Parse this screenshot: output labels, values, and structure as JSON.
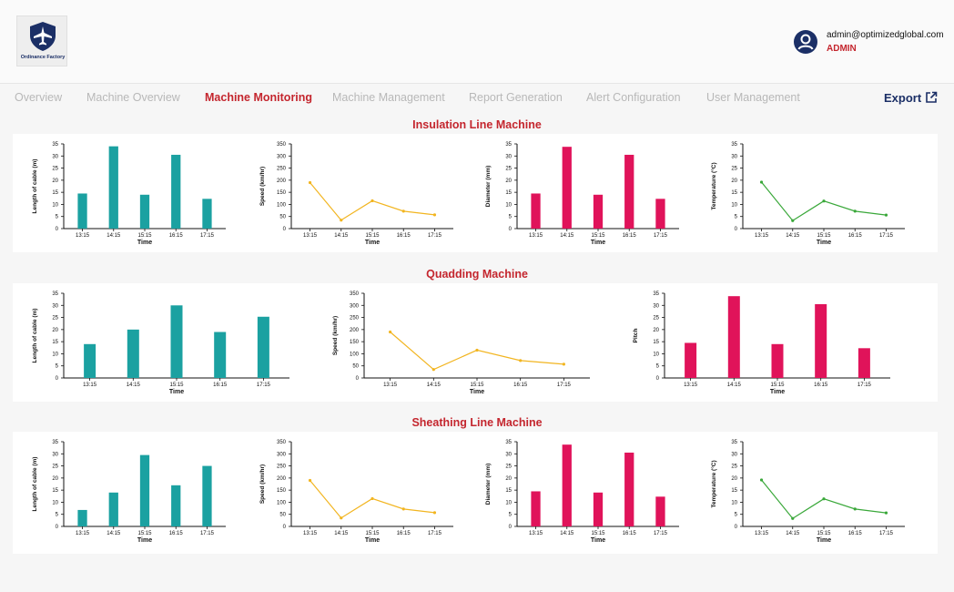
{
  "header": {
    "logo_text": "Ordinance Factory",
    "user_email": "admin@optimizedglobal.com",
    "user_role": "ADMIN"
  },
  "nav": {
    "tabs": [
      {
        "label": "Overview",
        "active": false
      },
      {
        "label": "Machine Overview",
        "active": false
      },
      {
        "label": "Machine Monitoring",
        "active": true
      },
      {
        "label": "Machine Management",
        "active": false
      },
      {
        "label": "Report Generation",
        "active": false
      },
      {
        "label": "Alert Configuration",
        "active": false
      },
      {
        "label": "User Management",
        "active": false
      }
    ],
    "export_label": "Export"
  },
  "colors": {
    "teal": "#1ba1a1",
    "amber": "#f2b520",
    "crimson": "#e0135a",
    "green": "#3aa83a",
    "accent": "#c4262e",
    "navy": "#1b2f66"
  },
  "sections": [
    {
      "title": "Insulation Line Machine"
    },
    {
      "title": "Quadding Machine"
    },
    {
      "title": "Sheathing Line Machine"
    }
  ],
  "chart_data": [
    {
      "id": "ins-length",
      "type": "bar",
      "color": "teal",
      "categories": [
        "13:15",
        "14:15",
        "15:15",
        "16:15",
        "17:15"
      ],
      "values": [
        14.5,
        34,
        14,
        30.5,
        12.3
      ],
      "ylabel": "Length of cable (m)",
      "xlabel": "Time",
      "ylim": [
        0,
        35
      ],
      "yticks": [
        0,
        5,
        10,
        15,
        20,
        25,
        30,
        35
      ]
    },
    {
      "id": "ins-speed",
      "type": "line",
      "color": "amber",
      "categories": [
        "13:15",
        "14:15",
        "15:15",
        "16:15",
        "17:15"
      ],
      "values": [
        190,
        35,
        115,
        72,
        57
      ],
      "ylabel": "Speed (km/hr)",
      "xlabel": "Time",
      "ylim": [
        0,
        350
      ],
      "yticks": [
        0,
        50,
        100,
        150,
        200,
        250,
        300,
        350
      ]
    },
    {
      "id": "ins-diameter",
      "type": "bar",
      "color": "crimson",
      "categories": [
        "13:15",
        "14:15",
        "15:15",
        "16:15",
        "17:15"
      ],
      "values": [
        14.5,
        33.8,
        14,
        30.5,
        12.3
      ],
      "ylabel": "Diameter (mm)",
      "xlabel": "Time",
      "ylim": [
        0,
        35
      ],
      "yticks": [
        0,
        5,
        10,
        15,
        20,
        25,
        30,
        35
      ]
    },
    {
      "id": "ins-temp",
      "type": "line",
      "color": "green",
      "categories": [
        "13:15",
        "14:15",
        "15:15",
        "16:15",
        "17:15"
      ],
      "values": [
        19.2,
        3.3,
        11.4,
        7.2,
        5.6
      ],
      "ylabel": "Temperature (°C)",
      "xlabel": "Time",
      "ylim": [
        0,
        35
      ],
      "yticks": [
        0,
        5,
        10,
        15,
        20,
        25,
        30,
        35
      ]
    },
    {
      "id": "quad-length",
      "type": "bar",
      "color": "teal",
      "categories": [
        "13:15",
        "14:15",
        "15:15",
        "16:15",
        "17:15"
      ],
      "values": [
        14,
        20,
        30,
        19,
        25.3
      ],
      "ylabel": "Length of cable (m)",
      "xlabel": "Time",
      "ylim": [
        0,
        35
      ],
      "yticks": [
        0,
        5,
        10,
        15,
        20,
        25,
        30,
        35
      ]
    },
    {
      "id": "quad-speed",
      "type": "line",
      "color": "amber",
      "categories": [
        "13:15",
        "14:15",
        "15:15",
        "16:15",
        "17:15"
      ],
      "values": [
        190,
        35,
        115,
        72,
        57
      ],
      "ylabel": "Speed (km/hr)",
      "xlabel": "Time",
      "ylim": [
        0,
        350
      ],
      "yticks": [
        0,
        50,
        100,
        150,
        200,
        250,
        300,
        350
      ]
    },
    {
      "id": "quad-pitch",
      "type": "bar",
      "color": "crimson",
      "categories": [
        "13:15",
        "14:15",
        "15:15",
        "16:15",
        "17:15"
      ],
      "values": [
        14.5,
        33.8,
        14,
        30.5,
        12.3
      ],
      "ylabel": "Pitch",
      "xlabel": "Time",
      "ylim": [
        0,
        35
      ],
      "yticks": [
        0,
        5,
        10,
        15,
        20,
        25,
        30,
        35
      ]
    },
    {
      "id": "sh-length",
      "type": "bar",
      "color": "teal",
      "categories": [
        "13:15",
        "14:15",
        "15:15",
        "16:15",
        "17:15"
      ],
      "values": [
        6.8,
        14,
        29.5,
        17,
        25
      ],
      "ylabel": "Length of cable (m)",
      "xlabel": "Time",
      "ylim": [
        0,
        35
      ],
      "yticks": [
        0,
        5,
        10,
        15,
        20,
        25,
        30,
        35
      ]
    },
    {
      "id": "sh-speed",
      "type": "line",
      "color": "amber",
      "categories": [
        "13:15",
        "14:15",
        "15:15",
        "16:15",
        "17:15"
      ],
      "values": [
        190,
        35,
        115,
        72,
        57
      ],
      "ylabel": "Speed (km/hr)",
      "xlabel": "Time",
      "ylim": [
        0,
        350
      ],
      "yticks": [
        0,
        50,
        100,
        150,
        200,
        250,
        300,
        350
      ]
    },
    {
      "id": "sh-diameter",
      "type": "bar",
      "color": "crimson",
      "categories": [
        "13:15",
        "14:15",
        "15:15",
        "16:15",
        "17:15"
      ],
      "values": [
        14.5,
        33.8,
        14,
        30.5,
        12.3
      ],
      "ylabel": "Diameter (mm)",
      "xlabel": "Time",
      "ylim": [
        0,
        35
      ],
      "yticks": [
        0,
        5,
        10,
        15,
        20,
        25,
        30,
        35
      ]
    },
    {
      "id": "sh-temp",
      "type": "line",
      "color": "green",
      "categories": [
        "13:15",
        "14:15",
        "15:15",
        "16:15",
        "17:15"
      ],
      "values": [
        19.2,
        3.3,
        11.4,
        7.2,
        5.6
      ],
      "ylabel": "Temperature (°C)",
      "xlabel": "Time",
      "ylim": [
        0,
        35
      ],
      "yticks": [
        0,
        5,
        10,
        15,
        20,
        25,
        30,
        35
      ]
    }
  ]
}
